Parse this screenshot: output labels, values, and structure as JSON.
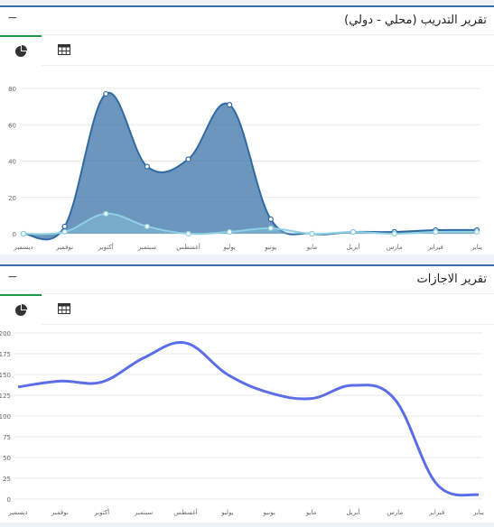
{
  "panels": [
    {
      "title": "تقرير التدريب (محلي - دولي)",
      "collapse": "−"
    },
    {
      "title": "تقرير الاجازات",
      "collapse": "−"
    }
  ],
  "colors": {
    "accent_border": "#3a6ea5",
    "active_tab": "#1f9a4a",
    "series_dark": "#2f6aa3",
    "series_light": "#8fd0e3",
    "line_blue": "#5b6ee8"
  },
  "icons": {
    "pie": "pie-chart-icon",
    "table": "table-icon"
  },
  "chart_data": [
    {
      "type": "area",
      "categories": [
        "يناير",
        "فبراير",
        "مارس",
        "أبريل",
        "مايو",
        "يونيو",
        "يوليو",
        "أغسطس",
        "سبتمبر",
        "أكتوبر",
        "نوفمبر",
        "ديسمبر"
      ],
      "series": [
        {
          "values": [
            2,
            2,
            1,
            1,
            0,
            8,
            71,
            41,
            37,
            77,
            4,
            0
          ]
        },
        {
          "values": [
            1,
            1,
            0,
            1,
            0,
            3,
            1,
            0,
            4,
            11,
            1,
            0
          ]
        }
      ],
      "ylim": [
        0,
        80
      ],
      "yticks": [
        0,
        20,
        40,
        60,
        80
      ],
      "grid": true,
      "direction": "rtl"
    },
    {
      "type": "line",
      "categories": [
        "يناير",
        "فبراير",
        "مارس",
        "أبريل",
        "مايو",
        "يونيو",
        "يوليو",
        "أغسطس",
        "سبتمبر",
        "أكتوبر",
        "نوفمبر",
        "ديسمبر"
      ],
      "series": [
        {
          "values": [
            5,
            18,
            120,
            137,
            121,
            128,
            150,
            188,
            170,
            141,
            142,
            135
          ]
        }
      ],
      "ylim": [
        0,
        200
      ],
      "yticks": [
        0,
        25,
        50,
        75,
        100,
        125,
        150,
        175,
        200
      ],
      "grid": true,
      "direction": "rtl"
    }
  ]
}
